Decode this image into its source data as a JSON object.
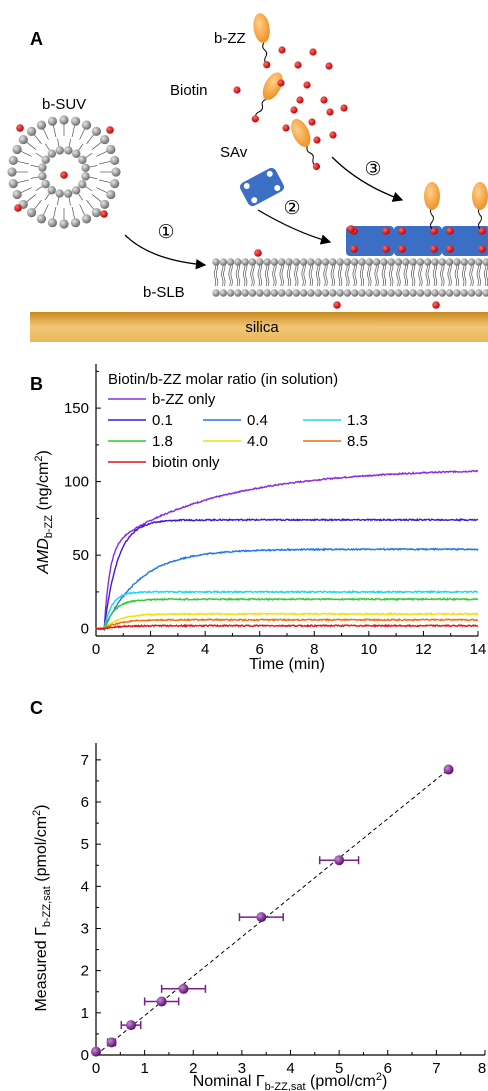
{
  "panel_a": {
    "letter": "A",
    "labels": {
      "b_suv": "b-SUV",
      "b_zz": "b-ZZ",
      "biotin": "Biotin",
      "sav": "SAv",
      "b_slb": "b-SLB",
      "silica": "silica",
      "step1": "①",
      "step2": "②",
      "step3": "③"
    },
    "colors": {
      "lipid_head": "#8c8c8c",
      "biotin": "#e3101a",
      "sav": "#3b6fc4",
      "zz": "#f3a43b",
      "silica": "#d79a2a"
    }
  },
  "chart_data": [
    {
      "type": "line",
      "panel": "B",
      "legend_title": "Biotin/b-ZZ molar ratio (in solution)",
      "xlabel": "Time (min)",
      "ylabel_main": "AMD",
      "ylabel_sub": "b-ZZ",
      "ylabel_unit": " (ng/cm",
      "ylabel_sup": "2",
      "ylabel_close": ")",
      "xlim": [
        0,
        14
      ],
      "ylim": [
        -5,
        180
      ],
      "xticks": [
        "0",
        "2",
        "4",
        "6",
        "8",
        "10",
        "12",
        "14"
      ],
      "yticks": [
        "0",
        "50",
        "100",
        "150"
      ],
      "grid": false,
      "legend_position": "top-left",
      "series": [
        {
          "name": "b-ZZ only",
          "color": "#8a2be2",
          "plateau": 109,
          "k": 0.45,
          "init": 55
        },
        {
          "name": "0.1",
          "color": "#3a1bd0",
          "plateau": 74,
          "k": 2.0,
          "init": 0
        },
        {
          "name": "0.4",
          "color": "#1f78e6",
          "plateau": 54,
          "k": 0.75,
          "init": 0
        },
        {
          "name": "1.3",
          "color": "#1ad8e8",
          "plateau": 25,
          "k": 3.5,
          "init": 0
        },
        {
          "name": "1.8",
          "color": "#2fcc2f",
          "plateau": 20,
          "k": 2.6,
          "init": 0
        },
        {
          "name": "4.0",
          "color": "#f2e000",
          "plateau": 10,
          "k": 1.8,
          "init": 0
        },
        {
          "name": "8.5",
          "color": "#f06b10",
          "plateau": 6,
          "k": 1.8,
          "init": 0
        },
        {
          "name": "biotin only",
          "color": "#dd1515",
          "plateau": 2,
          "k": 2.0,
          "init": 0
        }
      ]
    },
    {
      "type": "scatter",
      "panel": "C",
      "xlabel_pre": "Nominal ",
      "xlabel_sym": "Γ",
      "xlabel_sub": "b-ZZ,sat",
      "xlabel_unit": " (pmol/cm",
      "xlabel_sup": "2",
      "xlabel_close": ")",
      "ylabel_pre": "Measured ",
      "ylabel_sym": "Γ",
      "ylabel_sub": "b-ZZ,sat",
      "ylabel_unit": " (pmol/cm",
      "ylabel_sup": "2",
      "ylabel_close": ")",
      "xlim": [
        0,
        8
      ],
      "ylim": [
        0,
        7.4
      ],
      "xticks": [
        "0",
        "1",
        "2",
        "3",
        "4",
        "5",
        "6",
        "7",
        "8"
      ],
      "yticks": [
        "0",
        "1",
        "2",
        "3",
        "4",
        "5",
        "6",
        "7"
      ],
      "marker_color": "#7a1f8c",
      "points": [
        {
          "x": 0.0,
          "y": 0.08,
          "xerr": 0
        },
        {
          "x": 0.32,
          "y": 0.3,
          "xerr": 0.08
        },
        {
          "x": 0.72,
          "y": 0.71,
          "xerr": 0.2
        },
        {
          "x": 1.35,
          "y": 1.27,
          "xerr": 0.35
        },
        {
          "x": 1.8,
          "y": 1.57,
          "xerr": 0.45
        },
        {
          "x": 3.4,
          "y": 3.27,
          "xerr": 0.45
        },
        {
          "x": 5.0,
          "y": 4.62,
          "xerr": 0.4
        },
        {
          "x": 7.25,
          "y": 6.77,
          "xerr": 0
        }
      ],
      "fit_line": {
        "x": [
          0,
          7.3
        ],
        "y": [
          0,
          6.82
        ],
        "style": "dashed"
      }
    }
  ]
}
